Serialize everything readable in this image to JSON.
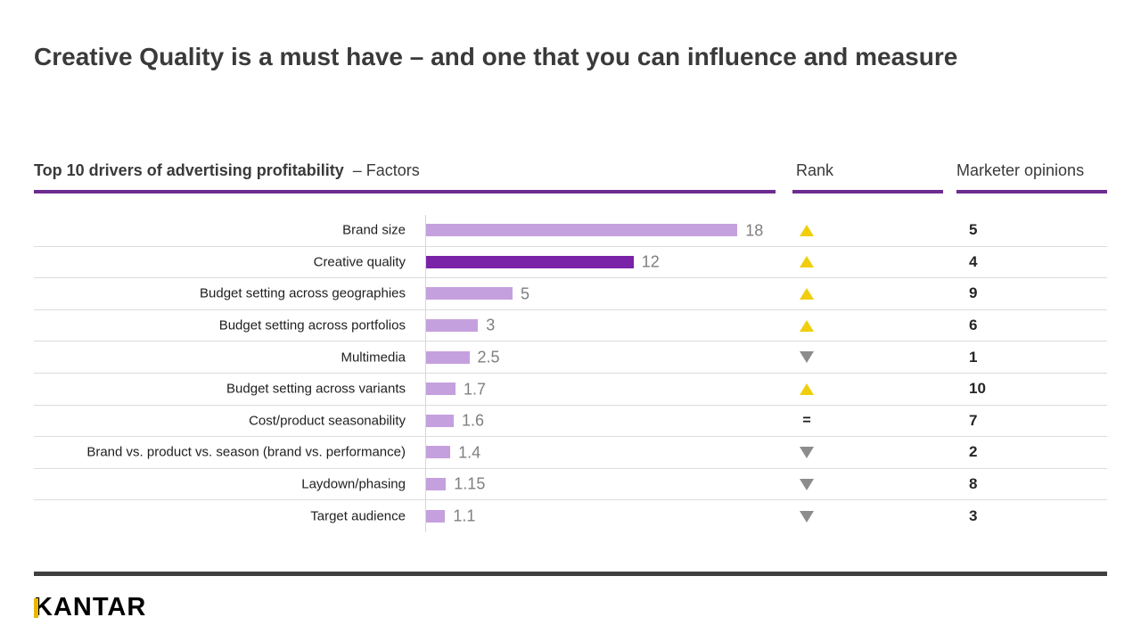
{
  "slide": {
    "title": "Creative Quality is a must have – and one that you can influence and measure"
  },
  "table": {
    "factors_header_bold": "Top 10 drivers of advertising profitability",
    "factors_header_regular": "– Factors",
    "rank_header": "Rank",
    "opinions_header": "Marketer opinions"
  },
  "chart_data": {
    "type": "bar",
    "orientation": "horizontal",
    "title": "Top 10 drivers of advertising profitability",
    "categories": [
      "Brand size",
      "Creative quality",
      "Budget setting across geographies",
      "Budget setting across portfolios",
      "Multimedia",
      "Budget setting across variants",
      "Cost/product seasonability",
      "Brand vs. product vs. season (brand vs. performance)",
      "Laydown/phasing",
      "Target audience"
    ],
    "values": [
      18,
      12,
      5,
      3,
      2.5,
      1.7,
      1.6,
      1.4,
      1.15,
      1.1
    ],
    "value_labels": [
      "18",
      "12",
      "5",
      "3",
      "2.5",
      "1.7",
      "1.6",
      "1.4",
      "1.15",
      "1.1"
    ],
    "rank_trend": [
      "up",
      "up",
      "up",
      "up",
      "down",
      "up",
      "equal",
      "down",
      "down",
      "down"
    ],
    "equal_symbol": "=",
    "marketer_opinions": [
      5,
      4,
      9,
      6,
      1,
      10,
      7,
      2,
      8,
      3
    ],
    "highlight_index": 1,
    "bar_color": "#C5A0DE",
    "highlight_color": "#7A23A8",
    "xlim": [
      0,
      20
    ],
    "legend": "none",
    "grid": "row-separators-only"
  },
  "theme": {
    "purple_underline": "#6E2C91",
    "rank_up_yellow": "#F0CE0C",
    "rank_down_gray": "#8C8C8C",
    "row_separator": "#DCDCDC",
    "axis_line": "#D6D6D6",
    "value_label_gray": "#7F7F7F",
    "footer_rule": "#3F3F3F",
    "logo_accent_yellow": "#E9B700"
  },
  "branding": {
    "logo_text": "KANTAR"
  }
}
